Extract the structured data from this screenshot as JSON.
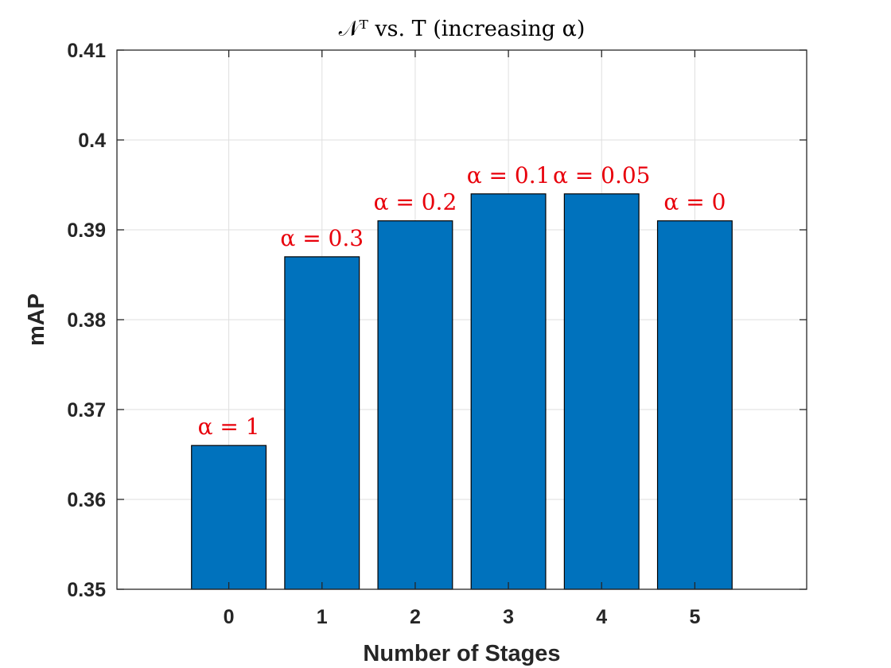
{
  "chart_data": {
    "type": "bar",
    "title": "𝒩ᵀ vs. T (increasing α)",
    "xlabel": "Number of Stages",
    "ylabel": "mAP",
    "categories": [
      "0",
      "1",
      "2",
      "3",
      "4",
      "5"
    ],
    "values": [
      0.366,
      0.387,
      0.391,
      0.394,
      0.394,
      0.391
    ],
    "bar_labels": [
      "α = 1",
      "α = 0.3",
      "α = 0.2",
      "α = 0.1",
      "α = 0.05",
      "α = 0"
    ],
    "xlim": [
      -1.2,
      6.2
    ],
    "ylim": [
      0.35,
      0.41
    ],
    "yticks": [
      "0.35",
      "0.36",
      "0.37",
      "0.38",
      "0.39",
      "0.4",
      "0.41"
    ],
    "grid": true,
    "colors": {
      "bar": "#0072BD",
      "bar_edge": "#000000",
      "label": "#E8000B",
      "grid": "#DFDFDF",
      "axis": "#262626"
    }
  }
}
